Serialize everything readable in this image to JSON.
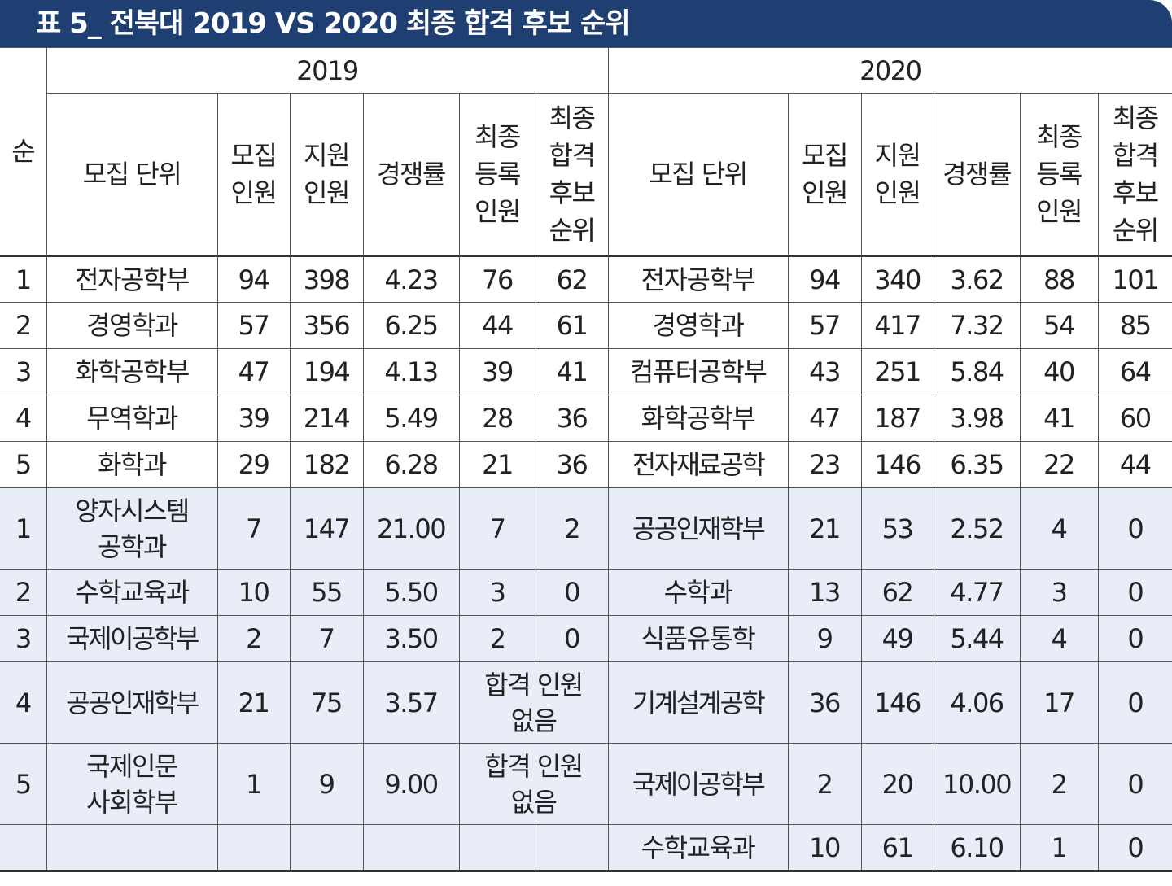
{
  "title": "표 5_ 전북대 2019 VS 2020 최종 합격 후보 순위",
  "headers": {
    "rank": "순",
    "year_2019": "2019",
    "year_2020": "2020",
    "unit": "모집 단위",
    "quota": "모집\n인원",
    "applicants": "지원\n인원",
    "ratio": "경쟁률",
    "final_reg": "최종\n등록\n인원",
    "final_rank": "최종\n합격\n후보\n순위"
  },
  "rows": [
    {
      "rank": "1",
      "u19": "전자공학부",
      "q19": "94",
      "a19": "398",
      "r19": "4.23",
      "f19": "76",
      "k19": "62",
      "u20": "전자공학부",
      "q20": "94",
      "a20": "340",
      "r20": "3.62",
      "f20": "88",
      "k20": "101"
    },
    {
      "rank": "2",
      "u19": "경영학과",
      "q19": "57",
      "a19": "356",
      "r19": "6.25",
      "f19": "44",
      "k19": "61",
      "u20": "경영학과",
      "q20": "57",
      "a20": "417",
      "r20": "7.32",
      "f20": "54",
      "k20": "85"
    },
    {
      "rank": "3",
      "u19": "화학공학부",
      "q19": "47",
      "a19": "194",
      "r19": "4.13",
      "f19": "39",
      "k19": "41",
      "u20": "컴퓨터공학부",
      "q20": "43",
      "a20": "251",
      "r20": "5.84",
      "f20": "40",
      "k20": "64"
    },
    {
      "rank": "4",
      "u19": "무역학과",
      "q19": "39",
      "a19": "214",
      "r19": "5.49",
      "f19": "28",
      "k19": "36",
      "u20": "화학공학부",
      "q20": "47",
      "a20": "187",
      "r20": "3.98",
      "f20": "41",
      "k20": "60"
    },
    {
      "rank": "5",
      "u19": "화학과",
      "q19": "29",
      "a19": "182",
      "r19": "6.28",
      "f19": "21",
      "k19": "36",
      "u20": "전자재료공학",
      "q20": "23",
      "a20": "146",
      "r20": "6.35",
      "f20": "22",
      "k20": "44"
    },
    {
      "rank": "1",
      "u19": "양자시스템\n공학과",
      "q19": "7",
      "a19": "147",
      "r19": "21.00",
      "f19": "7",
      "k19": "2",
      "u20": "공공인재학부",
      "q20": "21",
      "a20": "53",
      "r20": "2.52",
      "f20": "4",
      "k20": "0"
    },
    {
      "rank": "2",
      "u19": "수학교육과",
      "q19": "10",
      "a19": "55",
      "r19": "5.50",
      "f19": "3",
      "k19": "0",
      "u20": "수학과",
      "q20": "13",
      "a20": "62",
      "r20": "4.77",
      "f20": "3",
      "k20": "0"
    },
    {
      "rank": "3",
      "u19": "국제이공학부",
      "q19": "2",
      "a19": "7",
      "r19": "3.50",
      "f19": "2",
      "k19": "0",
      "u20": "식품유통학",
      "q20": "9",
      "a20": "49",
      "r20": "5.44",
      "f20": "4",
      "k20": "0"
    },
    {
      "rank": "4",
      "u19": "공공인재학부",
      "q19": "21",
      "a19": "75",
      "r19": "3.57",
      "merged19": "합격 인원\n없음",
      "u20": "기계설계공학",
      "q20": "36",
      "a20": "146",
      "r20": "4.06",
      "f20": "17",
      "k20": "0"
    },
    {
      "rank": "5",
      "u19": "국제인문\n사회학부",
      "q19": "1",
      "a19": "9",
      "r19": "9.00",
      "merged19": "합격 인원\n없음",
      "u20": "국제이공학부",
      "q20": "2",
      "a20": "20",
      "r20": "10.00",
      "f20": "2",
      "k20": "0"
    },
    {
      "rank": "",
      "u19": "",
      "q19": "",
      "a19": "",
      "r19": "",
      "f19": "",
      "k19": "",
      "u20": "수학교육과",
      "q20": "10",
      "a20": "61",
      "r20": "6.10",
      "f20": "1",
      "k20": "0"
    }
  ]
}
